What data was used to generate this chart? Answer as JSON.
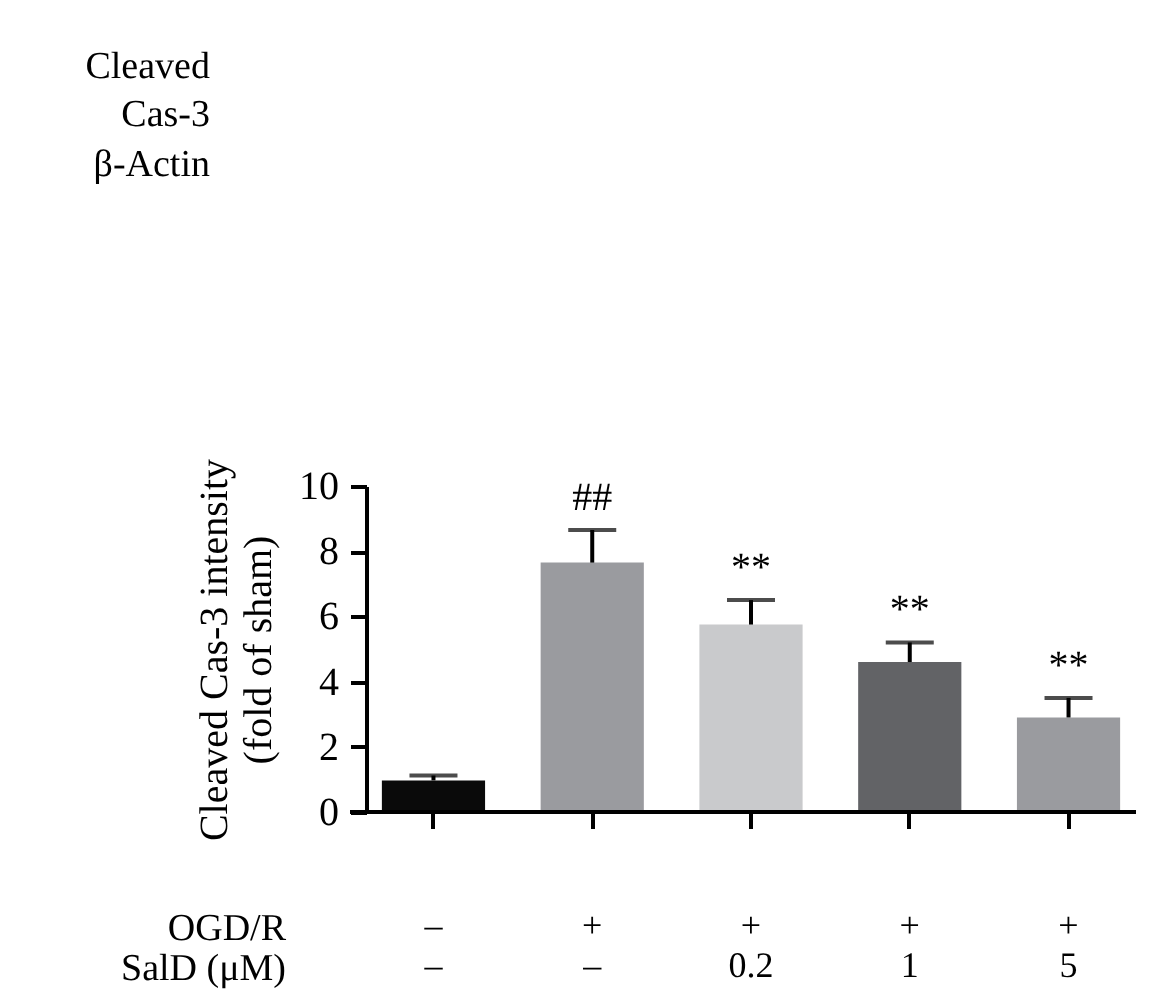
{
  "chart_data": {
    "type": "bar",
    "ylabel": "Cleaved Cas-3 intensity\n(fold of sham)",
    "categories": [
      "–\n–",
      "+\n–",
      "+\n0.2",
      "+\n1",
      "+\n5"
    ],
    "values": [
      0.97,
      7.65,
      5.75,
      4.6,
      2.9
    ],
    "errors": [
      0.15,
      1.0,
      0.75,
      0.6,
      0.6
    ],
    "colors": [
      "#0a0a0a",
      "#9a9b9f",
      "#c9cacc",
      "#626366",
      "#9a9b9f"
    ],
    "ylim": [
      0,
      10
    ],
    "yticks": [
      0,
      2,
      4,
      6,
      8,
      10
    ],
    "grid": false,
    "annotations": [
      "Cleaved\nCas-3",
      "β-Actin",
      "OGD/R",
      "SalD (μM)",
      {
        "text": "##",
        "x": "+\n–",
        "y": 8.65
      },
      {
        "text": "**",
        "x": "+\n0.2",
        "y": 6.5
      },
      {
        "text": "**",
        "x": "+\n1",
        "y": 5.2
      },
      {
        "text": "**",
        "x": "+\n5",
        "y": 3.5
      }
    ]
  }
}
